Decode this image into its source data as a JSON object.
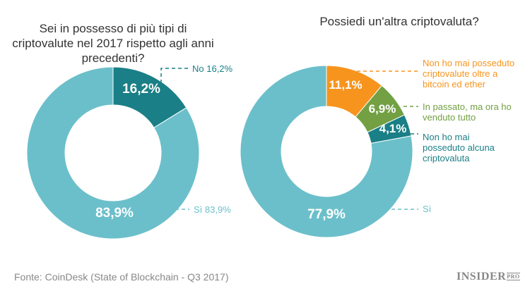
{
  "chart_data": [
    {
      "type": "pie",
      "donut": true,
      "title": "Sei in possesso di più tipi di criptovalute nel 2017 rispetto agli anni precedenti?",
      "slices": [
        {
          "label": "No 16,2%",
          "value": 16.2,
          "data_label": "16,2%",
          "color": "#1a7f86"
        },
        {
          "label": "Sì 83,9%",
          "value": 83.9,
          "data_label": "83,9%",
          "color": "#6bbfca"
        }
      ]
    },
    {
      "type": "pie",
      "donut": true,
      "title": "Possiedi un'altra criptovaluta?",
      "slices": [
        {
          "label": "Non ho mai posseduto criptovalute oltre a bitcoin ed ether",
          "value": 11.1,
          "data_label": "11,1%",
          "color": "#f7941d"
        },
        {
          "label": "In passato, ma ora ho venduto tutto",
          "value": 6.9,
          "data_label": "6,9%",
          "color": "#72a043"
        },
        {
          "label": "Non ho mai posseduto alcuna criptovaluta",
          "value": 4.1,
          "data_label": "4,1%",
          "color": "#1a7f86"
        },
        {
          "label": "Sì",
          "value": 77.9,
          "data_label": "77,9%",
          "color": "#6bbfca"
        }
      ]
    }
  ],
  "footer": {
    "source": "Fonte: CoinDesk (State of Blockchain - Q3 2017)",
    "logo": "INSIDER",
    "logo_sub": "PRO"
  }
}
